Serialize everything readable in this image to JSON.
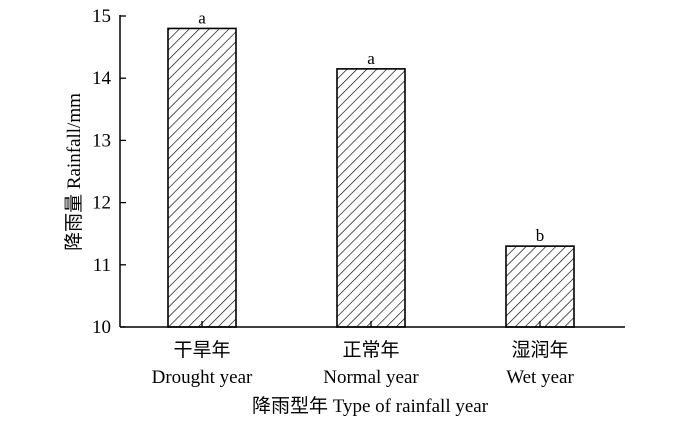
{
  "chart_data": {
    "type": "bar",
    "categories": [
      {
        "zh": "干旱年",
        "en": "Drought year"
      },
      {
        "zh": "正常年",
        "en": "Normal year"
      },
      {
        "zh": "湿润年",
        "en": "Wet year"
      }
    ],
    "values": [
      14.8,
      14.15,
      11.3
    ],
    "significance_labels": [
      "a",
      "a",
      "b"
    ],
    "xlabel": "降雨型年 Type of rainfall year",
    "ylabel": "降雨量 Rainfall/mm",
    "ylim": [
      10,
      15
    ],
    "yticks": [
      "10",
      "11",
      "12",
      "13",
      "14",
      "15"
    ],
    "bar_fill": "diagonal-hatch",
    "grid": false
  }
}
